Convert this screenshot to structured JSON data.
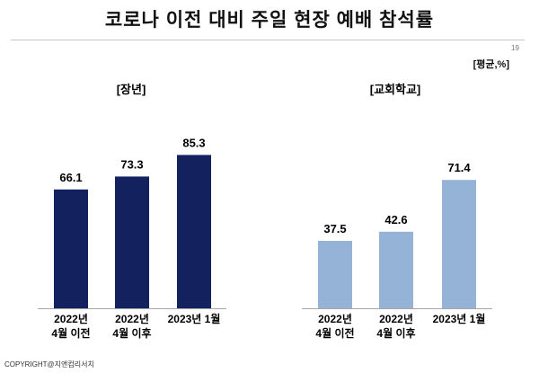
{
  "title": "코로나 이전 대비 주일 현장 예배 참석률",
  "page_number": "19",
  "unit": "[평균,%]",
  "copyright": "COPYRIGHT@지앤컴리서치",
  "chart_data": [
    {
      "type": "bar",
      "title": "[장년]",
      "categories": [
        [
          "2022년",
          "4월 이전"
        ],
        [
          "2022년",
          "4월 이후"
        ],
        [
          "2023년 1월"
        ]
      ],
      "values": [
        66.1,
        73.3,
        85.3
      ],
      "ylim": [
        0,
        100
      ],
      "color": "#13215f",
      "grid": false
    },
    {
      "type": "bar",
      "title": "[교회학교]",
      "categories": [
        [
          "2022년",
          "4월 이전"
        ],
        [
          "2022년",
          "4월 이후"
        ],
        [
          "2023년 1월"
        ]
      ],
      "values": [
        37.5,
        42.6,
        71.4
      ],
      "ylim": [
        0,
        100
      ],
      "color": "#95b3d7",
      "grid": false
    }
  ]
}
